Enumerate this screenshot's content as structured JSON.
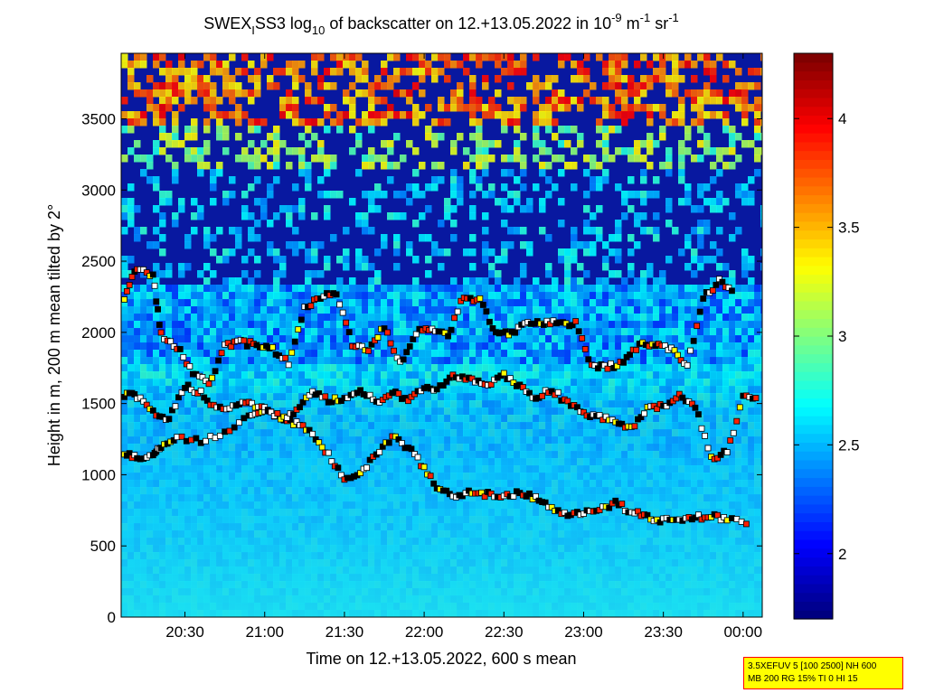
{
  "chart_data": {
    "type": "heatmap",
    "title": {
      "p1": "SWEX",
      "sub_i": "I",
      "p2": "SS3 log",
      "sub_10": "10",
      "p3": " of backscatter on 12.+13.05.2022 in 10",
      "sup_m9": "-9",
      "p4": " m",
      "sup_m1a": "-1",
      "p5": " sr",
      "sup_m1b": "-1"
    },
    "xlabel": "Time on 12.+13.05.2022, 600 s mean",
    "ylabel": "Height in m, 200 m mean tilted by 2°",
    "x_ticks": [
      "20:30",
      "21:00",
      "21:30",
      "22:00",
      "22:30",
      "23:00",
      "23:30",
      "00:00"
    ],
    "x_tick_hours": [
      20.5,
      21.0,
      21.5,
      22.0,
      22.5,
      23.0,
      23.5,
      24.0
    ],
    "xlim_hours": [
      20.1,
      24.12
    ],
    "y_ticks": [
      "0",
      "500",
      "1000",
      "1500",
      "2000",
      "2500",
      "3000",
      "3500"
    ],
    "y_tick_values": [
      0,
      500,
      1000,
      1500,
      2000,
      2500,
      3000,
      3500
    ],
    "ylim": [
      0,
      3960
    ],
    "colorbar": {
      "colormap": "jet",
      "range": [
        1.7,
        4.3
      ],
      "ticks": [
        "2",
        "2.5",
        "3",
        "3.5",
        "4"
      ],
      "tick_values": [
        2.0,
        2.5,
        3.0,
        3.5,
        4.0
      ]
    },
    "layer_series": [
      {
        "name": "",
        "points": [
          [
            20.12,
            1140
          ],
          [
            20.2,
            1130
          ],
          [
            20.3,
            1120
          ],
          [
            20.35,
            1200
          ],
          [
            20.45,
            1260
          ],
          [
            20.6,
            1240
          ],
          [
            20.75,
            1300
          ],
          [
            20.9,
            1420
          ],
          [
            21.0,
            1460
          ],
          [
            21.1,
            1390
          ],
          [
            21.2,
            1360
          ],
          [
            21.3,
            1290
          ],
          [
            21.4,
            1140
          ],
          [
            21.5,
            960
          ],
          [
            21.6,
            1020
          ],
          [
            21.7,
            1140
          ],
          [
            21.8,
            1270
          ],
          [
            21.9,
            1190
          ],
          [
            22.0,
            1050
          ],
          [
            22.1,
            880
          ],
          [
            22.2,
            860
          ],
          [
            22.3,
            880
          ],
          [
            22.4,
            860
          ],
          [
            22.5,
            840
          ],
          [
            22.6,
            870
          ],
          [
            22.7,
            840
          ],
          [
            22.8,
            760
          ],
          [
            22.9,
            730
          ],
          [
            23.0,
            740
          ],
          [
            23.1,
            760
          ],
          [
            23.2,
            800
          ],
          [
            23.3,
            740
          ],
          [
            23.4,
            700
          ],
          [
            23.5,
            680
          ],
          [
            23.6,
            690
          ],
          [
            23.7,
            700
          ],
          [
            23.8,
            710
          ],
          [
            23.9,
            690
          ],
          [
            24.05,
            660
          ]
        ]
      },
      {
        "name": "",
        "points": [
          [
            20.12,
            1560
          ],
          [
            20.2,
            1550
          ],
          [
            20.3,
            1440
          ],
          [
            20.4,
            1390
          ],
          [
            20.5,
            1620
          ],
          [
            20.6,
            1580
          ],
          [
            20.7,
            1460
          ],
          [
            20.8,
            1480
          ],
          [
            20.9,
            1500
          ],
          [
            21.0,
            1470
          ],
          [
            21.1,
            1400
          ],
          [
            21.2,
            1440
          ],
          [
            21.3,
            1580
          ],
          [
            21.4,
            1520
          ],
          [
            21.5,
            1540
          ],
          [
            21.6,
            1600
          ],
          [
            21.7,
            1500
          ],
          [
            21.8,
            1580
          ],
          [
            21.9,
            1520
          ],
          [
            22.0,
            1600
          ],
          [
            22.1,
            1610
          ],
          [
            22.2,
            1700
          ],
          [
            22.3,
            1660
          ],
          [
            22.4,
            1640
          ],
          [
            22.5,
            1700
          ],
          [
            22.6,
            1620
          ],
          [
            22.7,
            1540
          ],
          [
            22.8,
            1600
          ],
          [
            22.9,
            1500
          ],
          [
            23.0,
            1440
          ],
          [
            23.1,
            1400
          ],
          [
            23.2,
            1380
          ],
          [
            23.3,
            1320
          ],
          [
            23.4,
            1460
          ],
          [
            23.5,
            1480
          ],
          [
            23.6,
            1560
          ],
          [
            23.7,
            1480
          ],
          [
            23.8,
            1120
          ],
          [
            23.9,
            1160
          ],
          [
            24.0,
            1540
          ],
          [
            24.1,
            1530
          ]
        ]
      },
      {
        "name": "",
        "points": [
          [
            20.12,
            2240
          ],
          [
            20.2,
            2460
          ],
          [
            20.3,
            2400
          ],
          [
            20.35,
            1980
          ],
          [
            20.45,
            1900
          ],
          [
            20.55,
            1720
          ],
          [
            20.65,
            1630
          ],
          [
            20.75,
            1900
          ],
          [
            20.85,
            1930
          ],
          [
            20.95,
            1910
          ],
          [
            21.05,
            1880
          ],
          [
            21.15,
            1780
          ],
          [
            21.25,
            2180
          ],
          [
            21.35,
            2240
          ],
          [
            21.45,
            2280
          ],
          [
            21.55,
            1920
          ],
          [
            21.65,
            1880
          ],
          [
            21.75,
            2040
          ],
          [
            21.85,
            1780
          ],
          [
            21.95,
            2000
          ],
          [
            22.05,
            2020
          ],
          [
            22.15,
            1980
          ],
          [
            22.25,
            2260
          ],
          [
            22.35,
            2220
          ],
          [
            22.45,
            2000
          ],
          [
            22.55,
            2000
          ],
          [
            22.65,
            2080
          ],
          [
            22.75,
            2060
          ],
          [
            22.85,
            2070
          ],
          [
            22.95,
            2060
          ],
          [
            23.05,
            1760
          ],
          [
            23.15,
            1760
          ],
          [
            23.25,
            1780
          ],
          [
            23.35,
            1920
          ],
          [
            23.45,
            1920
          ],
          [
            23.55,
            1880
          ],
          [
            23.65,
            1760
          ],
          [
            23.75,
            2240
          ],
          [
            23.85,
            2360
          ],
          [
            23.95,
            2300
          ]
        ]
      }
    ]
  },
  "info_box": {
    "line1": "3.5XEFUV 5 [100 2500] NH 600",
    "line2": "MB 200 RG 15% TI 0 HI 15"
  }
}
